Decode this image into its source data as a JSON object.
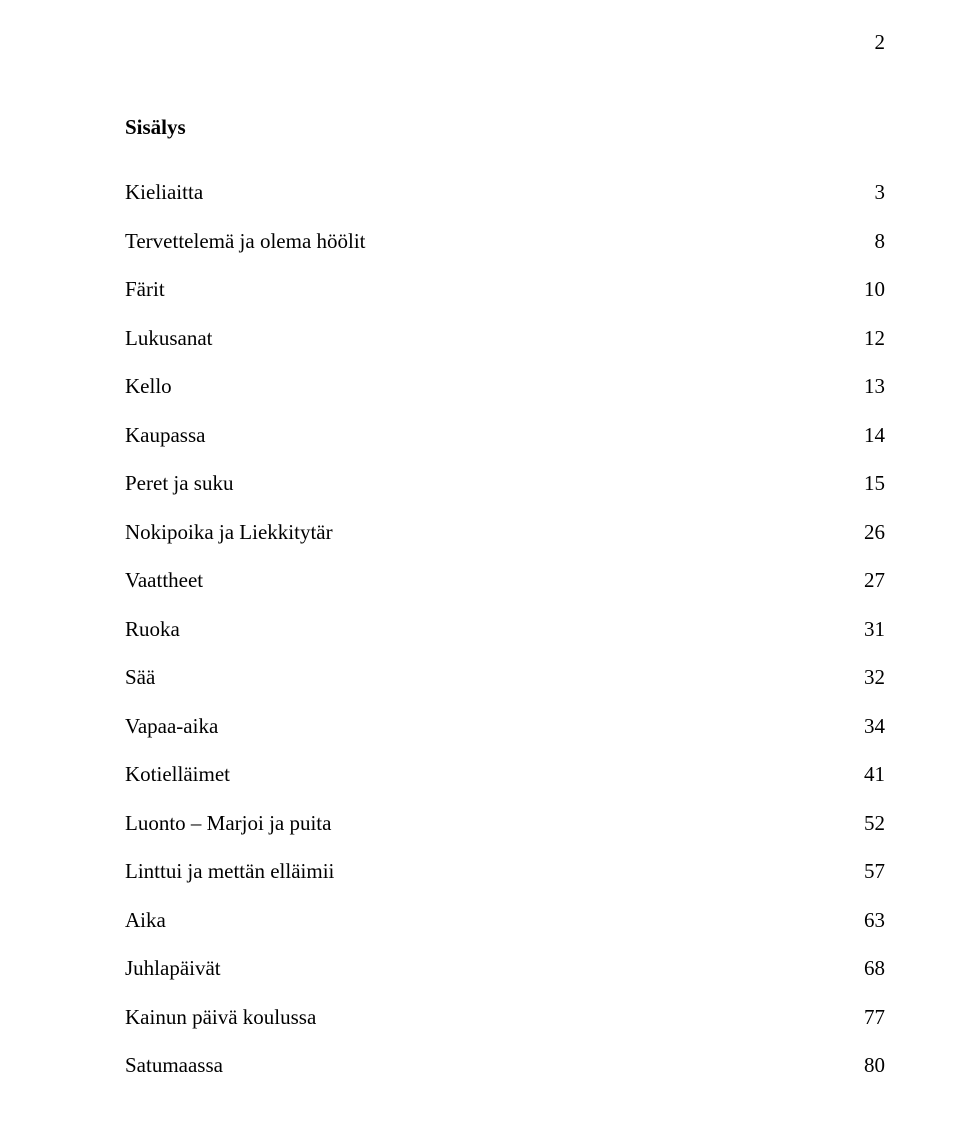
{
  "page_number": "2",
  "title": "Sisälys",
  "toc": [
    {
      "label": "Kieliaitta",
      "page": "3"
    },
    {
      "label": "Tervettelemä ja olema höölit",
      "page": "8"
    },
    {
      "label": "Färit",
      "page": "10"
    },
    {
      "label": "Lukusanat",
      "page": "12"
    },
    {
      "label": "Kello",
      "page": "13"
    },
    {
      "label": "Kaupassa",
      "page": "14"
    },
    {
      "label": "Peret ja suku",
      "page": "15"
    },
    {
      "label": "Nokipoika ja Liekkitytär",
      "page": "26"
    },
    {
      "label": "Vaattheet",
      "page": "27"
    },
    {
      "label": "Ruoka",
      "page": "31"
    },
    {
      "label": "Sää",
      "page": "32"
    },
    {
      "label": "Vapaa-aika",
      "page": "34"
    },
    {
      "label": "Kotielläimet",
      "page": "41"
    },
    {
      "label": "Luonto – Marjoi ja puita",
      "page": "52"
    },
    {
      "label": "Linttui ja mettän elläimii",
      "page": "57"
    },
    {
      "label": "Aika",
      "page": "63"
    },
    {
      "label": "Juhlapäivät",
      "page": "68"
    },
    {
      "label": "Kainun päivä koulussa",
      "page": "77"
    },
    {
      "label": "Satumaassa",
      "page": "80"
    }
  ]
}
